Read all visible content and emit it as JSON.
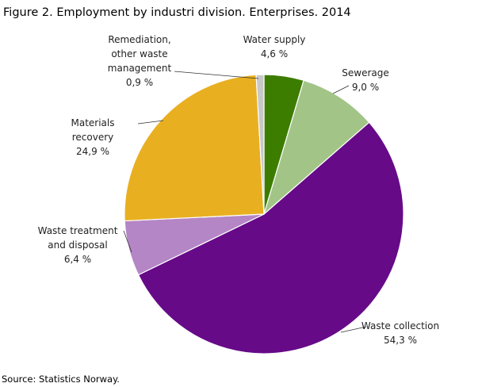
{
  "chart_data": {
    "type": "pie",
    "title": "Figure 2. Employment by industri division. Enterprises. 2014",
    "source": "Source: Statistics Norway.",
    "categories": [
      "Water supply",
      "Sewerage",
      "Waste collection",
      "Waste treatment and disposal",
      "Materials recovery",
      "Remediation, other waste management"
    ],
    "values": [
      4.6,
      9.0,
      54.3,
      6.4,
      24.9,
      0.9
    ],
    "value_labels": [
      "4,6 %",
      "9,0 %",
      "54,3 %",
      "6,4 %",
      "24,9 %",
      "0,9 %"
    ],
    "colors": [
      "#3c7d00",
      "#a2c587",
      "#660a88",
      "#b486c6",
      "#e8b021",
      "#c8c8c8"
    ]
  }
}
